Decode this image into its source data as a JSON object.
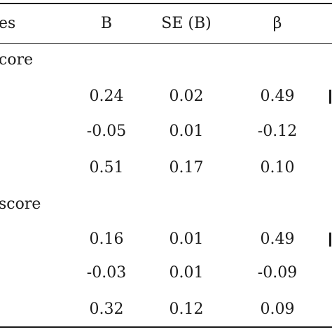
{
  "table": {
    "headers": {
      "variables": "es",
      "b": "B",
      "se": "SE (B)",
      "beta": "β"
    },
    "sections": [
      {
        "label": "core",
        "rows": [
          {
            "b": "0.24",
            "se": "0.02",
            "beta": "0.49"
          },
          {
            "b": "-0.05",
            "se": "0.01",
            "beta": "-0.12"
          },
          {
            "b": "0.51",
            "se": "0.17",
            "beta": "0.10"
          }
        ]
      },
      {
        "label": "score",
        "rows": [
          {
            "b": "0.16",
            "se": "0.01",
            "beta": "0.49"
          },
          {
            "b": "-0.03",
            "se": "0.01",
            "beta": "-0.09"
          },
          {
            "b": "0.32",
            "se": "0.12",
            "beta": "0.09"
          }
        ]
      }
    ]
  }
}
